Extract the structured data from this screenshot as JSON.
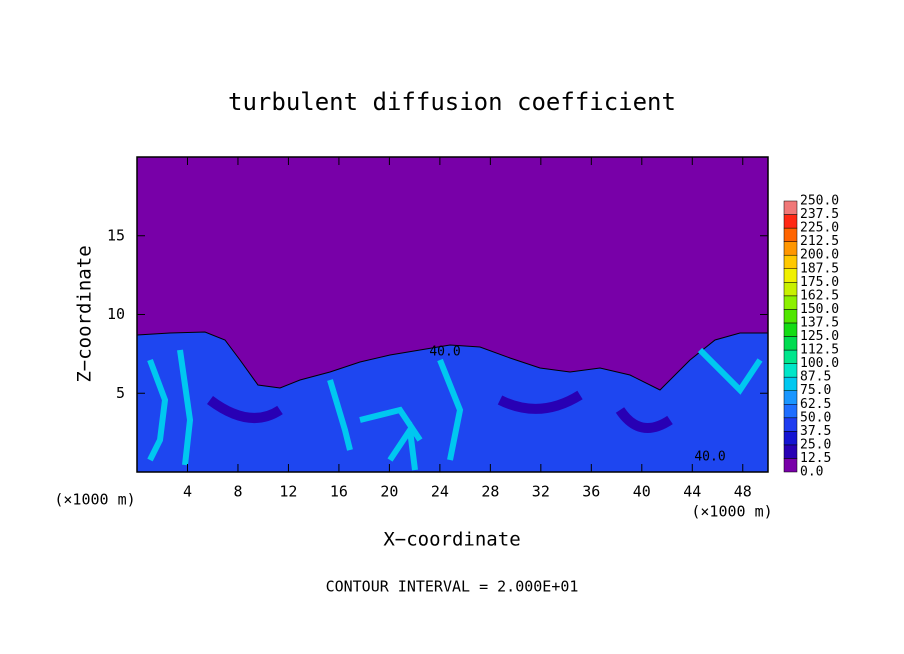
{
  "chart_data": {
    "type": "contour",
    "title": "turbulent diffusion coefficient",
    "x_label": "X−coordinate",
    "y_label": "Z−coordinate",
    "x_unit": "(×1000 m)",
    "y_unit": "(×1000 m)",
    "footer": "CONTOUR INTERVAL = 2.000E+01",
    "xlim": [
      0,
      50
    ],
    "ylim": [
      0,
      20
    ],
    "xticks": [
      4,
      8,
      12,
      16,
      20,
      24,
      28,
      32,
      36,
      40,
      44,
      48
    ],
    "yticks": [
      5,
      10,
      15
    ],
    "contour_labels": [
      "40.0",
      "40.0"
    ],
    "colorbar": {
      "levels": [
        {
          "value": 0,
          "label": "0.0"
        },
        {
          "value": 12.5,
          "label": "12.5"
        },
        {
          "value": 25,
          "label": "25.0"
        },
        {
          "value": 37.5,
          "label": "37.5"
        },
        {
          "value": 50,
          "label": "50.0"
        },
        {
          "value": 62.5,
          "label": "62.5"
        },
        {
          "value": 75,
          "label": "75.0"
        },
        {
          "value": 87.5,
          "label": "87.5"
        },
        {
          "value": 100,
          "label": "100.0"
        },
        {
          "value": 112.5,
          "label": "112.5"
        },
        {
          "value": 125,
          "label": "125.0"
        },
        {
          "value": 137.5,
          "label": "137.5"
        },
        {
          "value": 150,
          "label": "150.0"
        },
        {
          "value": 162.5,
          "label": "162.5"
        },
        {
          "value": 175,
          "label": "175.0"
        },
        {
          "value": 187.5,
          "label": "187.5"
        },
        {
          "value": 200,
          "label": "200.0"
        },
        {
          "value": 212.5,
          "label": "212.5"
        },
        {
          "value": 225,
          "label": "225.0"
        },
        {
          "value": 237.5,
          "label": "237.5"
        },
        {
          "value": 250,
          "label": "250.0"
        }
      ],
      "colors": [
        "#7800a8",
        "#2800b4",
        "#1414d2",
        "#1e3cf0",
        "#1e6eff",
        "#1996ff",
        "#00c8f0",
        "#00e6c8",
        "#00e68c",
        "#00dc50",
        "#14dc14",
        "#50e600",
        "#8cf000",
        "#c8f000",
        "#f0f000",
        "#ffc800",
        "#ff9600",
        "#ff6400",
        "#ff2814",
        "#f07878"
      ]
    }
  }
}
